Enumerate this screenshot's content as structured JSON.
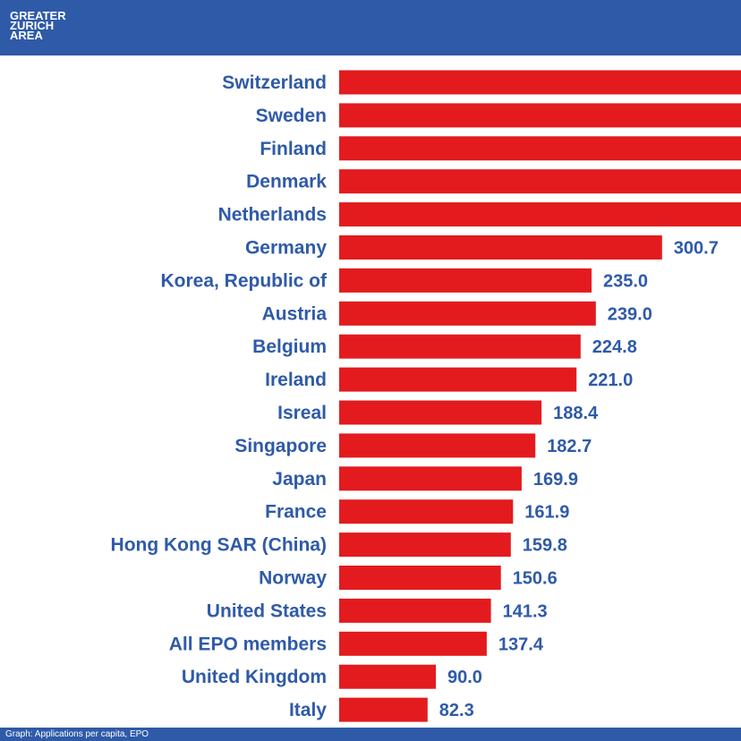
{
  "logo": {
    "line1": "GREATER",
    "line2": "ZURICH",
    "line3": "AREA"
  },
  "footer": {
    "source": "Graph: Applications per capita, EPO"
  },
  "colors": {
    "brand": "#2f5aa8",
    "bar": "#e31b1e"
  },
  "chart_data": {
    "type": "bar",
    "orientation": "horizontal",
    "title": "",
    "xlabel": "",
    "ylabel": "",
    "xlim": [
      0,
      380
    ],
    "categories": [
      "Switzerland",
      "Sweden",
      "Finland",
      "Denmark",
      "Netherlands",
      "Germany",
      "Korea, Republic of",
      "Austria",
      "Belgium",
      "Ireland",
      "Isreal",
      "Singapore",
      "Japan",
      "France",
      "Hong Kong SAR (China)",
      "Norway",
      "United States",
      "All EPO members",
      "United Kingdom",
      "Italy"
    ],
    "values": [
      null,
      null,
      null,
      null,
      null,
      300.7,
      235.0,
      239.0,
      224.8,
      221.0,
      188.4,
      182.7,
      169.9,
      161.9,
      159.8,
      150.6,
      141.3,
      137.4,
      90.0,
      82.3
    ],
    "value_labels": [
      "",
      "",
      "",
      "",
      "",
      "300.7",
      "235.0",
      "239.0",
      "224.8",
      "221.0",
      "188.4",
      "182.7",
      "169.9",
      "161.9",
      "159.8",
      "150.6",
      "141.3",
      "137.4",
      "90.0",
      "82.3"
    ],
    "truncated_bars": [
      "Switzerland",
      "Sweden",
      "Finland",
      "Denmark",
      "Netherlands"
    ]
  }
}
